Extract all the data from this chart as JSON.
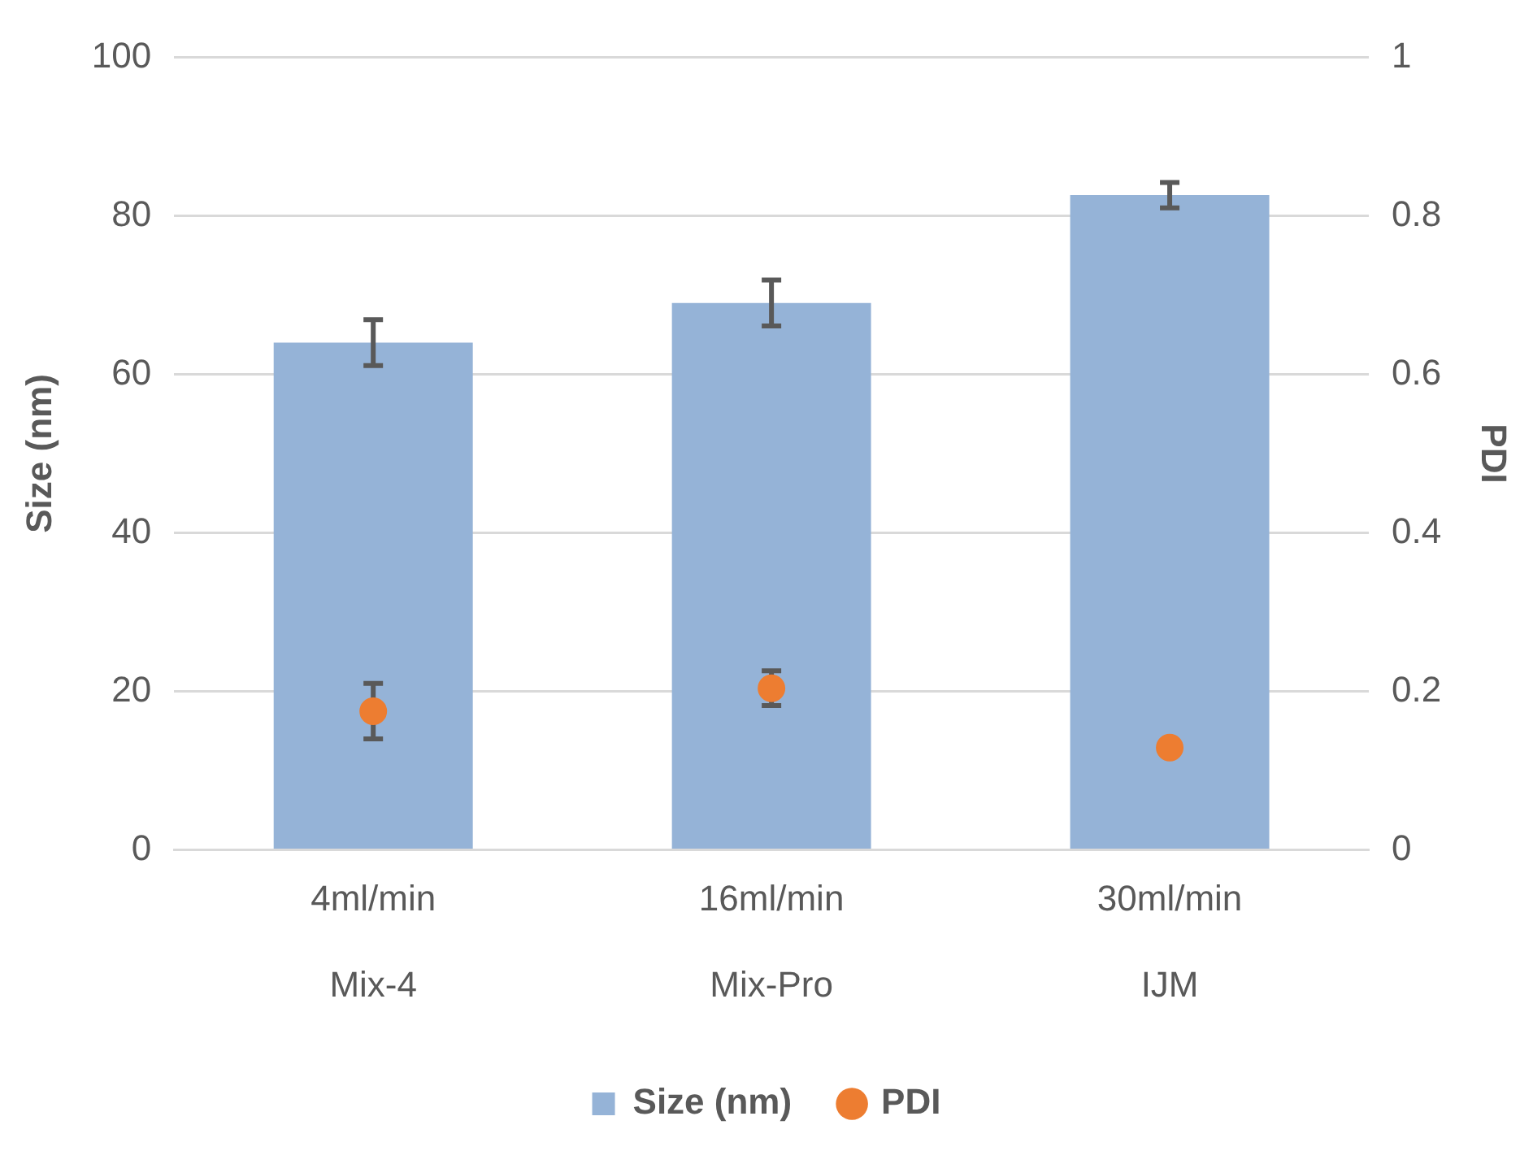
{
  "chart_data": {
    "type": "bar",
    "categories": [
      "4ml/min\nMix-4",
      "16ml/min\nMix-Pro",
      "30ml/min\nIJM"
    ],
    "ylabel": "Size (nm)",
    "y2label": "PDI",
    "ylim": [
      0,
      100
    ],
    "yticks": [
      0,
      20,
      40,
      60,
      80,
      100
    ],
    "y2lim": [
      0,
      1
    ],
    "y2ticks": [
      0,
      0.2,
      0.4,
      0.6,
      0.8,
      1
    ],
    "grid": "y",
    "legend": "bottom",
    "series": [
      {
        "name": "Size (nm)",
        "type": "bar",
        "color": "#95b3d7",
        "values": [
          64.0,
          69.0,
          82.6
        ],
        "errors": [
          2.9,
          2.9,
          1.6
        ]
      },
      {
        "name": "PDI",
        "type": "scatter",
        "axis": "y2",
        "marker": "circle",
        "color": "#ed7d31",
        "x": [
          "4ml/min\nMix-4",
          "16ml/min\nMix-Pro",
          "30ml/min\nIJM"
        ],
        "values": [
          0.175,
          0.204,
          0.129
        ],
        "errors": [
          0.035,
          0.022,
          0.003
        ]
      }
    ]
  }
}
